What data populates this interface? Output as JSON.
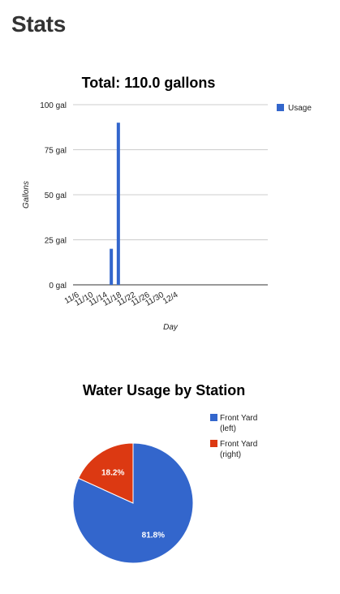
{
  "page": {
    "title": "Stats"
  },
  "colors": {
    "usage": "#3366cc",
    "front_left": "#3366cc",
    "front_right": "#dc3912",
    "grid": "#cccccc"
  },
  "chart_data": [
    {
      "type": "bar",
      "title": "Total: 110.0 gallons",
      "xlabel": "Day",
      "ylabel": "Gallons",
      "ylim": [
        0,
        100
      ],
      "y_ticks": [
        "0 gal",
        "25 gal",
        "50 gal",
        "75 gal",
        "100 gal"
      ],
      "x_ticks": [
        "11/6",
        "11/10",
        "11/14",
        "11/18",
        "11/22",
        "11/26",
        "11/30",
        "12/4"
      ],
      "legend_position": "right",
      "series": [
        {
          "name": "Usage",
          "points": [
            {
              "x": "11/15",
              "y": 20
            },
            {
              "x": "11/17",
              "y": 90
            }
          ]
        }
      ]
    },
    {
      "type": "pie",
      "title": "Water Usage by Station",
      "legend_position": "right",
      "slices": [
        {
          "label": "Front Yard (left)",
          "legend_lines": [
            "Front Yard",
            "(left)"
          ],
          "value": 81.8,
          "display": "81.8%"
        },
        {
          "label": "Front Yard (right)",
          "legend_lines": [
            "Front Yard",
            "(right)"
          ],
          "value": 18.2,
          "display": "18.2%"
        }
      ]
    }
  ]
}
